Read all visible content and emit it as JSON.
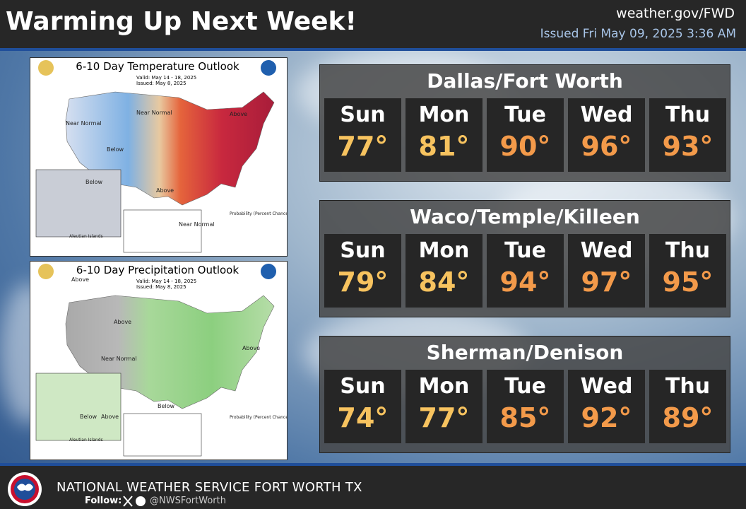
{
  "header": {
    "title": "Warming Up Next Week!",
    "website": "weather.gov/FWD",
    "issued": "Issued Fri May 09, 2025 3:36 AM"
  },
  "maps": [
    {
      "title": "6-10 Day Temperature Outlook",
      "valid": "Valid: May 14 - 18, 2025",
      "issued": "Issued: May 8, 2025",
      "labels": [
        "Near Normal",
        "Near Normal",
        "Below",
        "Above",
        "Above",
        "Below",
        "Near Normal",
        "Aleutian Islands",
        "Probability (Percent Chance)"
      ]
    },
    {
      "title": "6-10 Day Precipitation Outlook",
      "valid": "Valid: May 14 - 18, 2025",
      "issued": "Issued: May 8, 2025",
      "labels": [
        "Above",
        "Above",
        "Above",
        "Near Normal",
        "Below",
        "Below",
        "Above",
        "Aleutian Islands",
        "Probability (Percent Chance)"
      ]
    }
  ],
  "forecasts": [
    {
      "city": "Dallas/Fort Worth",
      "days": [
        {
          "day": "Sun",
          "temp": "77°",
          "color": "#f7c35f"
        },
        {
          "day": "Mon",
          "temp": "81°",
          "color": "#f7c35f"
        },
        {
          "day": "Tue",
          "temp": "90°",
          "color": "#f39a4a"
        },
        {
          "day": "Wed",
          "temp": "96°",
          "color": "#f39a4a"
        },
        {
          "day": "Thu",
          "temp": "93°",
          "color": "#f39a4a"
        }
      ]
    },
    {
      "city": "Waco/Temple/Killeen",
      "days": [
        {
          "day": "Sun",
          "temp": "79°",
          "color": "#f7c35f"
        },
        {
          "day": "Mon",
          "temp": "84°",
          "color": "#f7c35f"
        },
        {
          "day": "Tue",
          "temp": "94°",
          "color": "#f39a4a"
        },
        {
          "day": "Wed",
          "temp": "97°",
          "color": "#f39a4a"
        },
        {
          "day": "Thu",
          "temp": "95°",
          "color": "#f39a4a"
        }
      ]
    },
    {
      "city": "Sherman/Denison",
      "days": [
        {
          "day": "Sun",
          "temp": "74°",
          "color": "#f7c35f"
        },
        {
          "day": "Mon",
          "temp": "77°",
          "color": "#f7c35f"
        },
        {
          "day": "Tue",
          "temp": "85°",
          "color": "#f39a4a"
        },
        {
          "day": "Wed",
          "temp": "92°",
          "color": "#f39a4a"
        },
        {
          "day": "Thu",
          "temp": "89°",
          "color": "#f39a4a"
        }
      ]
    }
  ],
  "footer": {
    "agency": "NATIONAL WEATHER SERVICE FORT WORTH TX",
    "follow": "Follow:",
    "handle": "@NWSFortWorth"
  }
}
